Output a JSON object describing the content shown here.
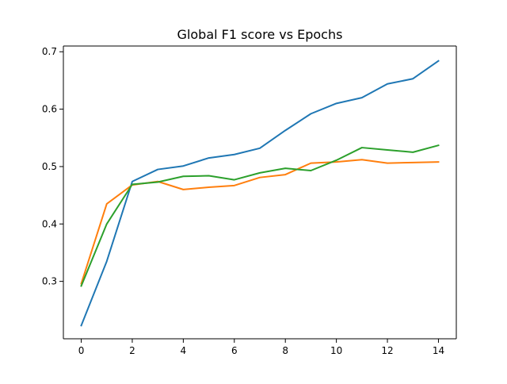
{
  "chart_data": {
    "type": "line",
    "title": "Global F1 score vs Epochs",
    "xlabel": "",
    "ylabel": "",
    "x": [
      0,
      1,
      2,
      3,
      4,
      5,
      6,
      7,
      8,
      9,
      10,
      11,
      12,
      13,
      14
    ],
    "xlim": [
      -0.7,
      14.7
    ],
    "ylim": [
      0.2,
      0.71
    ],
    "xticks": [
      0,
      2,
      4,
      6,
      8,
      10,
      12,
      14
    ],
    "yticks": [
      0.3,
      0.4,
      0.5,
      0.6,
      0.7
    ],
    "xtick_labels": [
      "0",
      "2",
      "4",
      "6",
      "8",
      "10",
      "12",
      "14"
    ],
    "ytick_labels": [
      "0.3",
      "0.4",
      "0.5",
      "0.6",
      "0.7"
    ],
    "grid": false,
    "legend": "none",
    "series": [
      {
        "color": "#1f77b4",
        "values": [
          0.223,
          0.335,
          0.474,
          0.495,
          0.501,
          0.515,
          0.521,
          0.532,
          0.563,
          0.592,
          0.61,
          0.62,
          0.644,
          0.653,
          0.684
        ]
      },
      {
        "color": "#ff7f0e",
        "values": [
          0.296,
          0.435,
          0.468,
          0.474,
          0.46,
          0.464,
          0.467,
          0.481,
          0.486,
          0.506,
          0.508,
          0.512,
          0.506,
          0.507,
          0.508
        ]
      },
      {
        "color": "#2ca02c",
        "values": [
          0.292,
          0.4,
          0.469,
          0.473,
          0.483,
          0.484,
          0.477,
          0.489,
          0.497,
          0.493,
          0.511,
          0.533,
          0.529,
          0.525,
          0.537
        ]
      }
    ]
  }
}
